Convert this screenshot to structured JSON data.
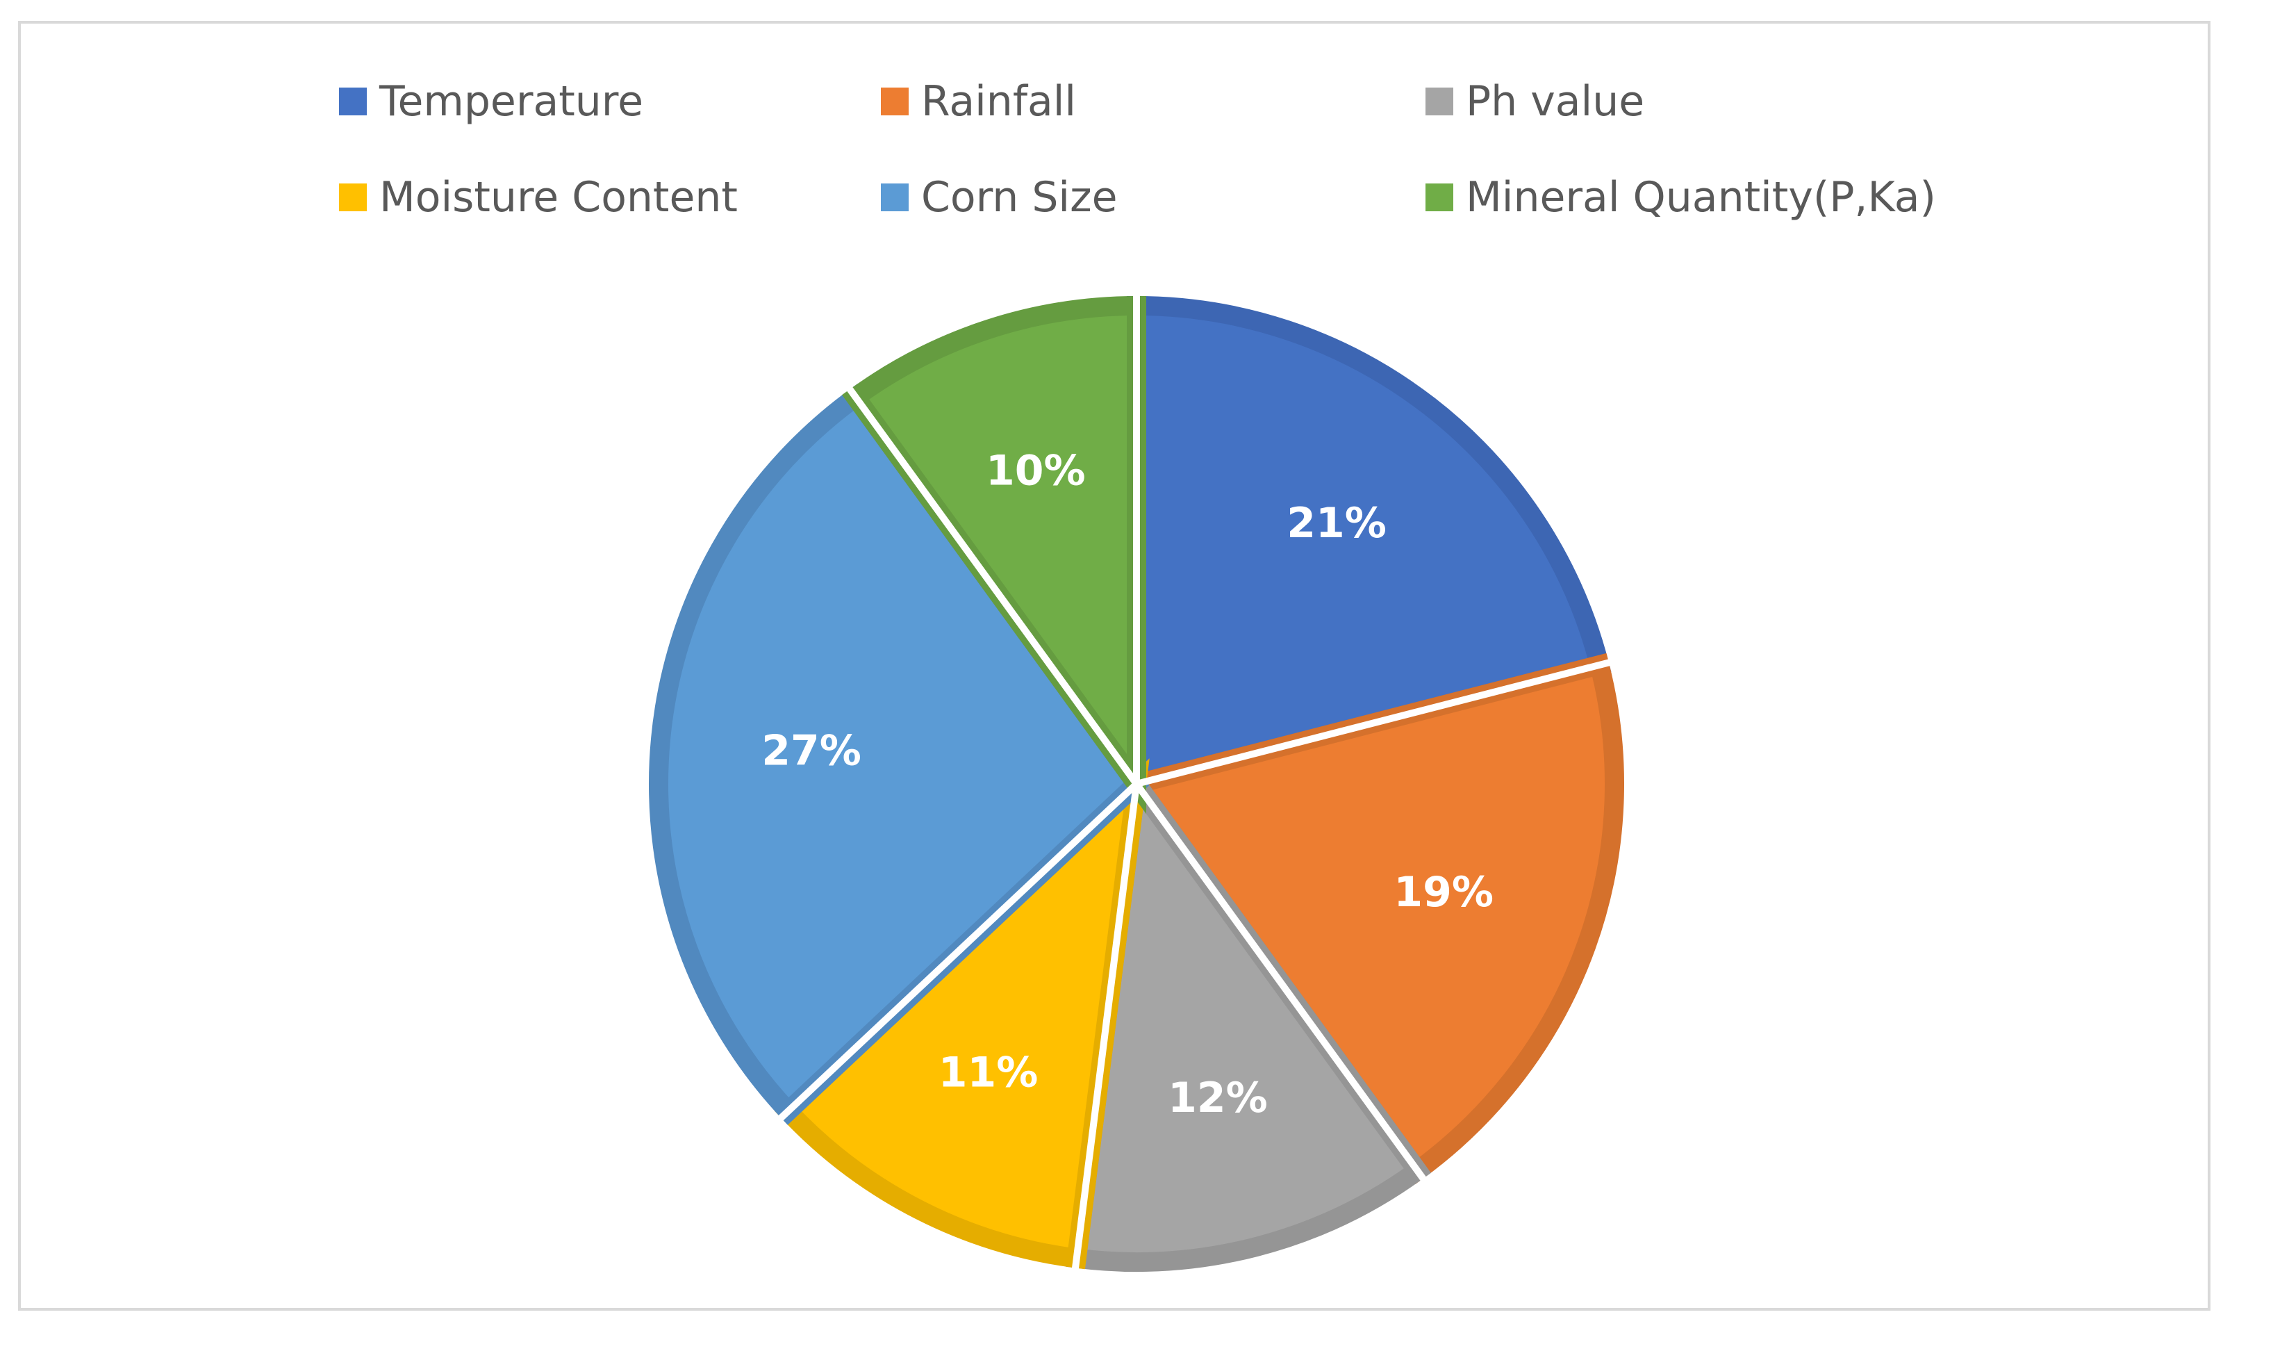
{
  "chart_data": {
    "type": "pie",
    "title": "",
    "legend_position": "top",
    "categories": [
      "Temperature",
      "Rainfall",
      "Ph value",
      "Moisture Content",
      "Corn Size",
      "Mineral Quantity(P,Ka)"
    ],
    "values": [
      21,
      19,
      12,
      11,
      27,
      10
    ],
    "value_labels": [
      "21%",
      "19%",
      "12%",
      "11%",
      "27%",
      "10%"
    ],
    "colors": [
      "#4472C4",
      "#ED7D31",
      "#A5A5A5",
      "#FFC000",
      "#5B9BD5",
      "#70AD47"
    ],
    "border_colors": [
      "#3D66B3",
      "#D5712C",
      "#959595",
      "#E5AD00",
      "#5189BF",
      "#659C40"
    ]
  }
}
